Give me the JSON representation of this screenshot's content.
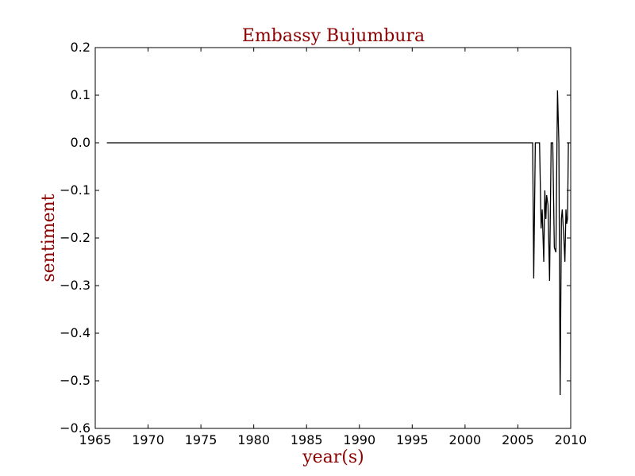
{
  "chart_data": {
    "type": "line",
    "title": "Embassy Bujumbura",
    "xlabel": "year(s)",
    "ylabel": "sentiment",
    "xlim": [
      1965,
      2010
    ],
    "ylim": [
      -0.6,
      0.2
    ],
    "xticks": [
      "1965",
      "1970",
      "1975",
      "1980",
      "1985",
      "1990",
      "1995",
      "2000",
      "2005",
      "2010"
    ],
    "yticks": [
      "0.2",
      "0.1",
      "0.0",
      "−0.1",
      "−0.2",
      "−0.3",
      "−0.4",
      "−0.5",
      "−0.6"
    ],
    "ytick_values": [
      0.2,
      0.1,
      0.0,
      -0.1,
      -0.2,
      -0.3,
      -0.4,
      -0.5,
      -0.6
    ],
    "grid": false,
    "legend": "none",
    "series": [
      {
        "color": "#000000",
        "points": [
          [
            1966.1,
            0.0
          ],
          [
            2006.4,
            0.0
          ],
          [
            2006.5,
            -0.285
          ],
          [
            2006.65,
            0.0
          ],
          [
            2007.05,
            0.0
          ],
          [
            2007.2,
            -0.18
          ],
          [
            2007.3,
            -0.14
          ],
          [
            2007.45,
            -0.25
          ],
          [
            2007.55,
            -0.1
          ],
          [
            2007.65,
            -0.16
          ],
          [
            2007.72,
            -0.11
          ],
          [
            2007.85,
            -0.13
          ],
          [
            2008.0,
            -0.29
          ],
          [
            2008.15,
            0.0
          ],
          [
            2008.3,
            0.0
          ],
          [
            2008.45,
            -0.22
          ],
          [
            2008.6,
            -0.23
          ],
          [
            2008.7,
            0.0
          ],
          [
            2008.75,
            0.11
          ],
          [
            2008.88,
            0.0
          ],
          [
            2008.95,
            -0.31
          ],
          [
            2009.0,
            -0.53
          ],
          [
            2009.12,
            -0.16
          ],
          [
            2009.2,
            -0.14
          ],
          [
            2009.35,
            -0.2
          ],
          [
            2009.45,
            -0.25
          ],
          [
            2009.55,
            -0.14
          ],
          [
            2009.62,
            -0.17
          ],
          [
            2009.7,
            -0.16
          ],
          [
            2009.78,
            0.0
          ],
          [
            2009.9,
            0.0
          ]
        ]
      }
    ]
  },
  "colors": {
    "label_color": "#8b0000",
    "line_color": "#000000",
    "axes_color": "#000000",
    "background": "#ffffff"
  }
}
